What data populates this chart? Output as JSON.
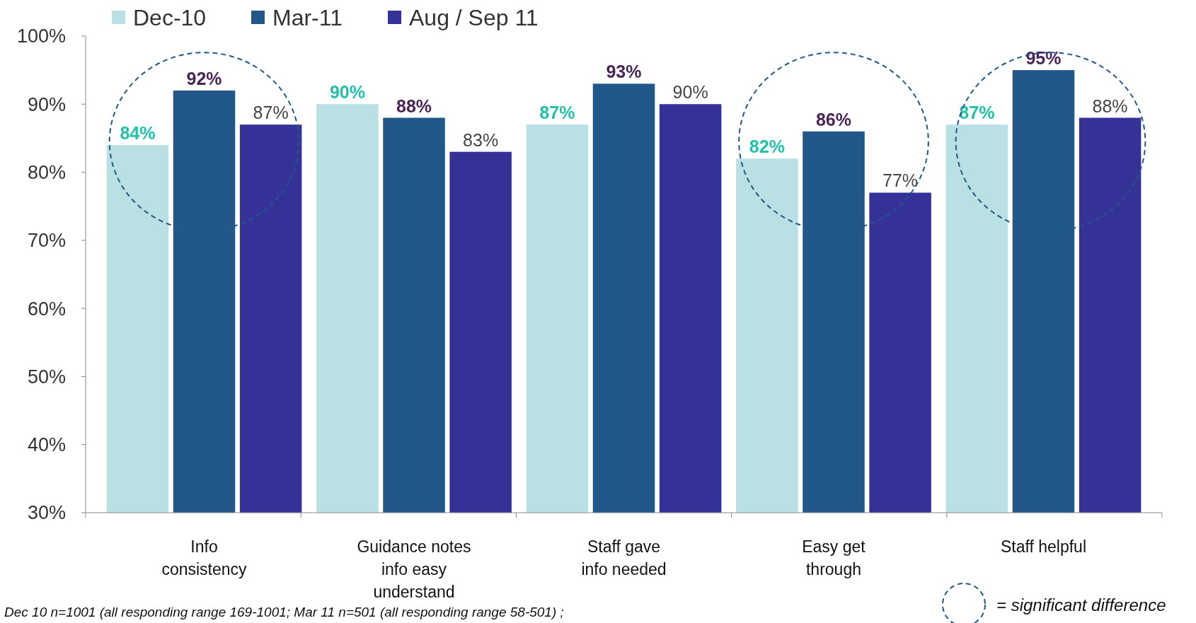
{
  "chart_data": {
    "type": "bar",
    "categories": [
      "Info consistency",
      "Guidance notes info easy understand",
      "Staff gave info needed",
      "Easy get through",
      "Staff helpful"
    ],
    "series": [
      {
        "name": "Dec-10",
        "color": "#b9e0e3",
        "values": [
          84,
          90,
          87,
          82,
          87
        ],
        "value_labels": [
          "84%",
          "90%",
          "87%",
          "82%",
          "87%"
        ]
      },
      {
        "name": "Mar-11",
        "color": "#22578a",
        "values": [
          92,
          88,
          93,
          86,
          95
        ],
        "value_labels": [
          "92%",
          "88%",
          "93%",
          "86%",
          "95%"
        ]
      },
      {
        "name": "Aug / Sep 11",
        "color": "#343297",
        "values": [
          87,
          83,
          90,
          77,
          88
        ],
        "value_labels": [
          "87%",
          "83%",
          "90%",
          "77%",
          "88%"
        ]
      }
    ],
    "ylim": [
      30,
      100
    ],
    "yticks": [
      {
        "value": 30,
        "label": "30%"
      },
      {
        "value": 40,
        "label": "40%"
      },
      {
        "value": 50,
        "label": "50%"
      },
      {
        "value": 60,
        "label": "60%"
      },
      {
        "value": 70,
        "label": "70%"
      },
      {
        "value": 80,
        "label": "80%"
      },
      {
        "value": 90,
        "label": "90%"
      },
      {
        "value": 100,
        "label": "100%"
      }
    ],
    "grid": false,
    "legend": "top left",
    "annotations": [
      "= significant difference",
      "Dec 10 n=1001 (all responding range 169-1001; Mar 11 n=501 (all responding range 58-501) ;"
    ]
  }
}
